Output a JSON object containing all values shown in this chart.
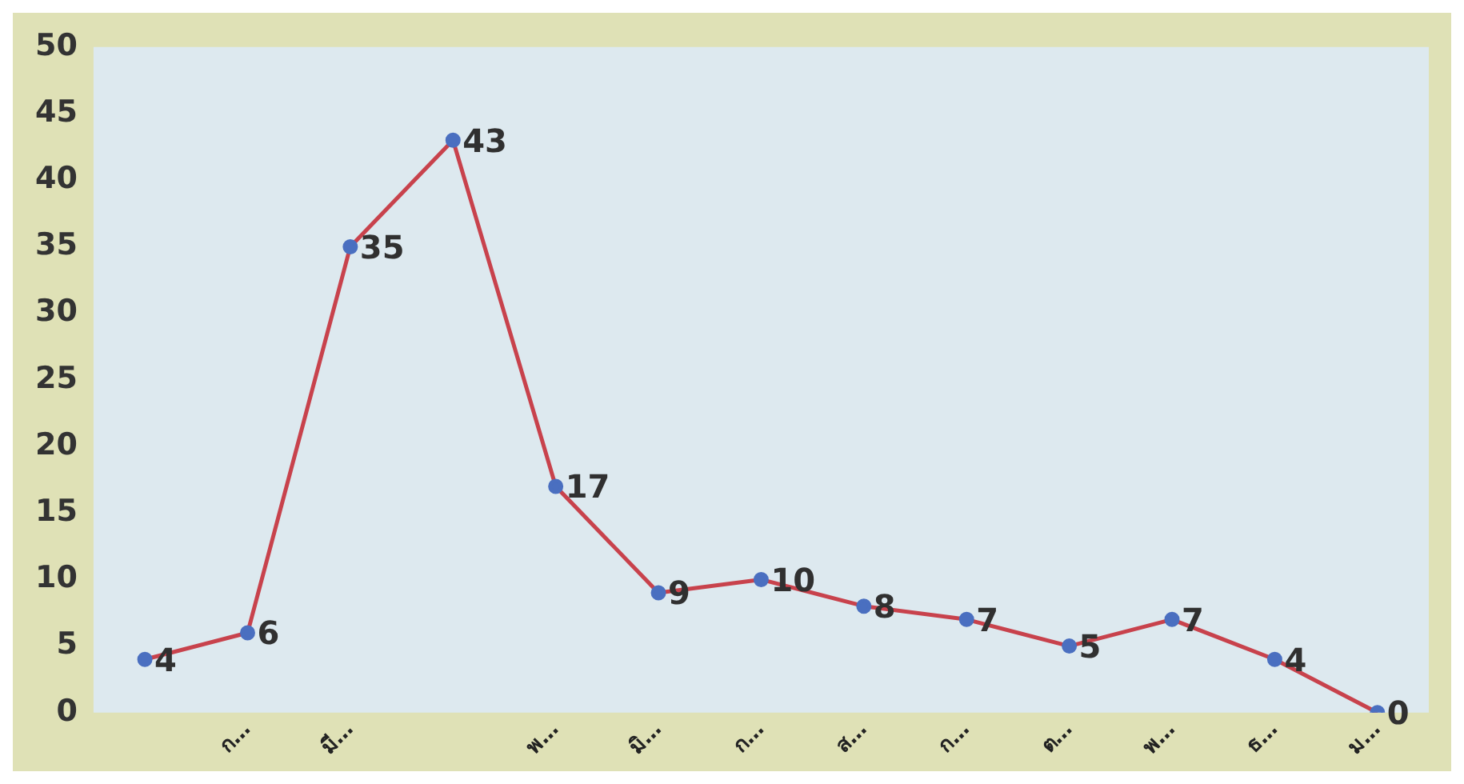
{
  "chart_data": {
    "type": "line",
    "categories": [
      null,
      "ก…",
      "มี…",
      null,
      "พ…",
      "มิ…",
      "ก…",
      "ส…",
      "ก…",
      "ต…",
      "พ…",
      "ธ…",
      "ม…"
    ],
    "series": [
      {
        "color": "#c8424c",
        "values": [
          4,
          6,
          35,
          43,
          17,
          9,
          10,
          8,
          7,
          5,
          7,
          4,
          0
        ]
      }
    ],
    "ylim": [
      0,
      50
    ],
    "yticks": [
      0,
      5,
      10,
      15,
      20,
      25,
      30,
      35,
      40,
      45,
      50
    ],
    "grid": false,
    "legend": false,
    "marker": "circle",
    "line_style": "solid",
    "data_labels": true
  }
}
